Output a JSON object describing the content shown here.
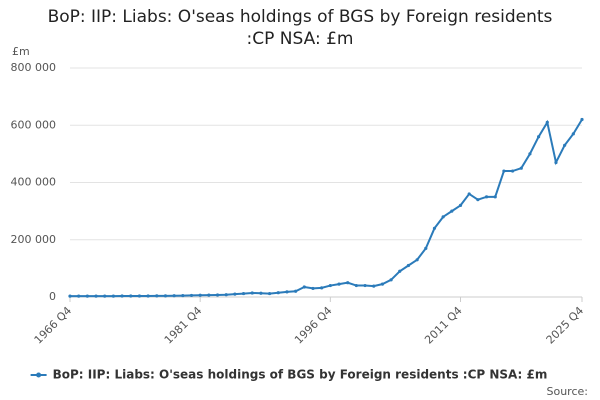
{
  "chart_data": {
    "type": "line",
    "title": "BoP: IIP: Liabs: O'seas holdings of BGS by Foreign residents :CP NSA: £m",
    "y_unit": "£m",
    "source": "Source:",
    "categories": [
      "1966 Q4",
      null,
      null,
      null,
      null,
      null,
      null,
      null,
      null,
      null,
      null,
      null,
      null,
      null,
      null,
      "1981 Q4",
      null,
      null,
      null,
      null,
      null,
      null,
      null,
      null,
      null,
      null,
      null,
      null,
      null,
      null,
      "1996 Q4",
      null,
      null,
      null,
      null,
      null,
      null,
      null,
      null,
      null,
      null,
      null,
      null,
      null,
      null,
      "2011 Q4",
      null,
      null,
      null,
      null,
      null,
      null,
      null,
      null,
      null,
      null,
      null,
      null,
      null,
      "2025 Q4"
    ],
    "series": [
      {
        "name": "BoP: IIP: Liabs: O'seas holdings of BGS by Foreign residents :CP NSA: £m",
        "color": "#2b7bba",
        "values": [
          3000,
          3000,
          3000,
          3000,
          3000,
          3000,
          3500,
          3500,
          3500,
          3500,
          4000,
          4000,
          4500,
          5000,
          5500,
          6000,
          6500,
          7000,
          8000,
          10000,
          12000,
          14000,
          13000,
          12000,
          15000,
          18000,
          20000,
          35000,
          30000,
          32000,
          40000,
          45000,
          50000,
          40000,
          40000,
          38000,
          45000,
          60000,
          90000,
          110000,
          130000,
          170000,
          240000,
          280000,
          300000,
          320000,
          360000,
          340000,
          350000,
          350000,
          440000,
          440000,
          450000,
          500000,
          560000,
          610000,
          470000,
          530000,
          570000,
          620000
        ]
      }
    ],
    "ylim": [
      0,
      800000
    ],
    "yticks": [
      0,
      {
        "value": 200000,
        "label": "200 000"
      },
      {
        "value": 400000,
        "label": "400 000"
      },
      {
        "value": 600000,
        "label": "600 000"
      },
      {
        "value": 800000,
        "label": "800 000"
      }
    ],
    "grid": true
  }
}
